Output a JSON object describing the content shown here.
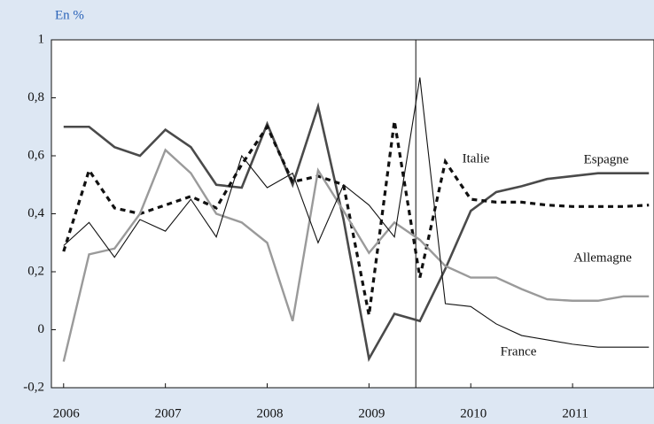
{
  "chart_data": {
    "type": "line",
    "y_label": "En %",
    "x": [
      2006,
      2006.25,
      2006.5,
      2006.75,
      2007,
      2007.25,
      2007.5,
      2007.75,
      2008,
      2008.25,
      2008.5,
      2008.75,
      2009,
      2009.25,
      2009.5,
      2009.75,
      2010,
      2010.25,
      2010.5,
      2010.75,
      2011,
      2011.25,
      2011.5,
      2011.75
    ],
    "series": [
      {
        "name": "Espagne",
        "color": "#4a4a4a",
        "style": "thick",
        "values": [
          0.7,
          0.7,
          0.63,
          0.6,
          0.69,
          0.63,
          0.5,
          0.49,
          0.71,
          0.5,
          0.77,
          0.38,
          -0.1,
          0.055,
          0.03,
          0.21,
          0.41,
          0.475,
          0.495,
          0.52,
          0.53,
          0.54,
          0.54,
          0.54
        ]
      },
      {
        "name": "Italie",
        "color": "#111111",
        "style": "dashed",
        "values": [
          0.27,
          0.55,
          0.42,
          0.4,
          0.43,
          0.46,
          0.42,
          0.57,
          0.7,
          0.51,
          0.53,
          0.5,
          0.05,
          0.72,
          0.18,
          0.58,
          0.45,
          0.44,
          0.44,
          0.43,
          0.425,
          0.425,
          0.425,
          0.43
        ]
      },
      {
        "name": "Allemagne",
        "color": "#9a9a9a",
        "style": "medium",
        "values": [
          -0.11,
          0.26,
          0.28,
          0.4,
          0.62,
          0.54,
          0.4,
          0.37,
          0.3,
          0.03,
          0.55,
          0.41,
          0.265,
          0.37,
          0.31,
          0.22,
          0.18,
          0.18,
          0.14,
          0.105,
          0.1,
          0.1,
          0.115,
          0.115
        ]
      },
      {
        "name": "France",
        "color": "#111111",
        "style": "thin",
        "values": [
          0.29,
          0.37,
          0.25,
          0.38,
          0.34,
          0.45,
          0.32,
          0.6,
          0.49,
          0.54,
          0.3,
          0.5,
          0.43,
          0.32,
          0.87,
          0.09,
          0.08,
          0.02,
          -0.02,
          -0.035,
          -0.05,
          -0.06,
          -0.06,
          -0.06
        ]
      }
    ],
    "xlim": [
      2005.88,
      2011.8
    ],
    "xticks": [
      2006,
      2007,
      2008,
      2009,
      2010,
      2011
    ],
    "ylim": [
      -0.2,
      1
    ],
    "yticks": [
      {
        "value": -0.2,
        "label": "-0,2"
      },
      0,
      {
        "value": 0.2,
        "label": "0,2"
      },
      {
        "value": 0.4,
        "label": "0,4"
      },
      {
        "value": 0.6,
        "label": "0,6"
      },
      {
        "value": 0.8,
        "label": "0,8"
      },
      1
    ],
    "vline": 2009.46,
    "grid": false
  }
}
